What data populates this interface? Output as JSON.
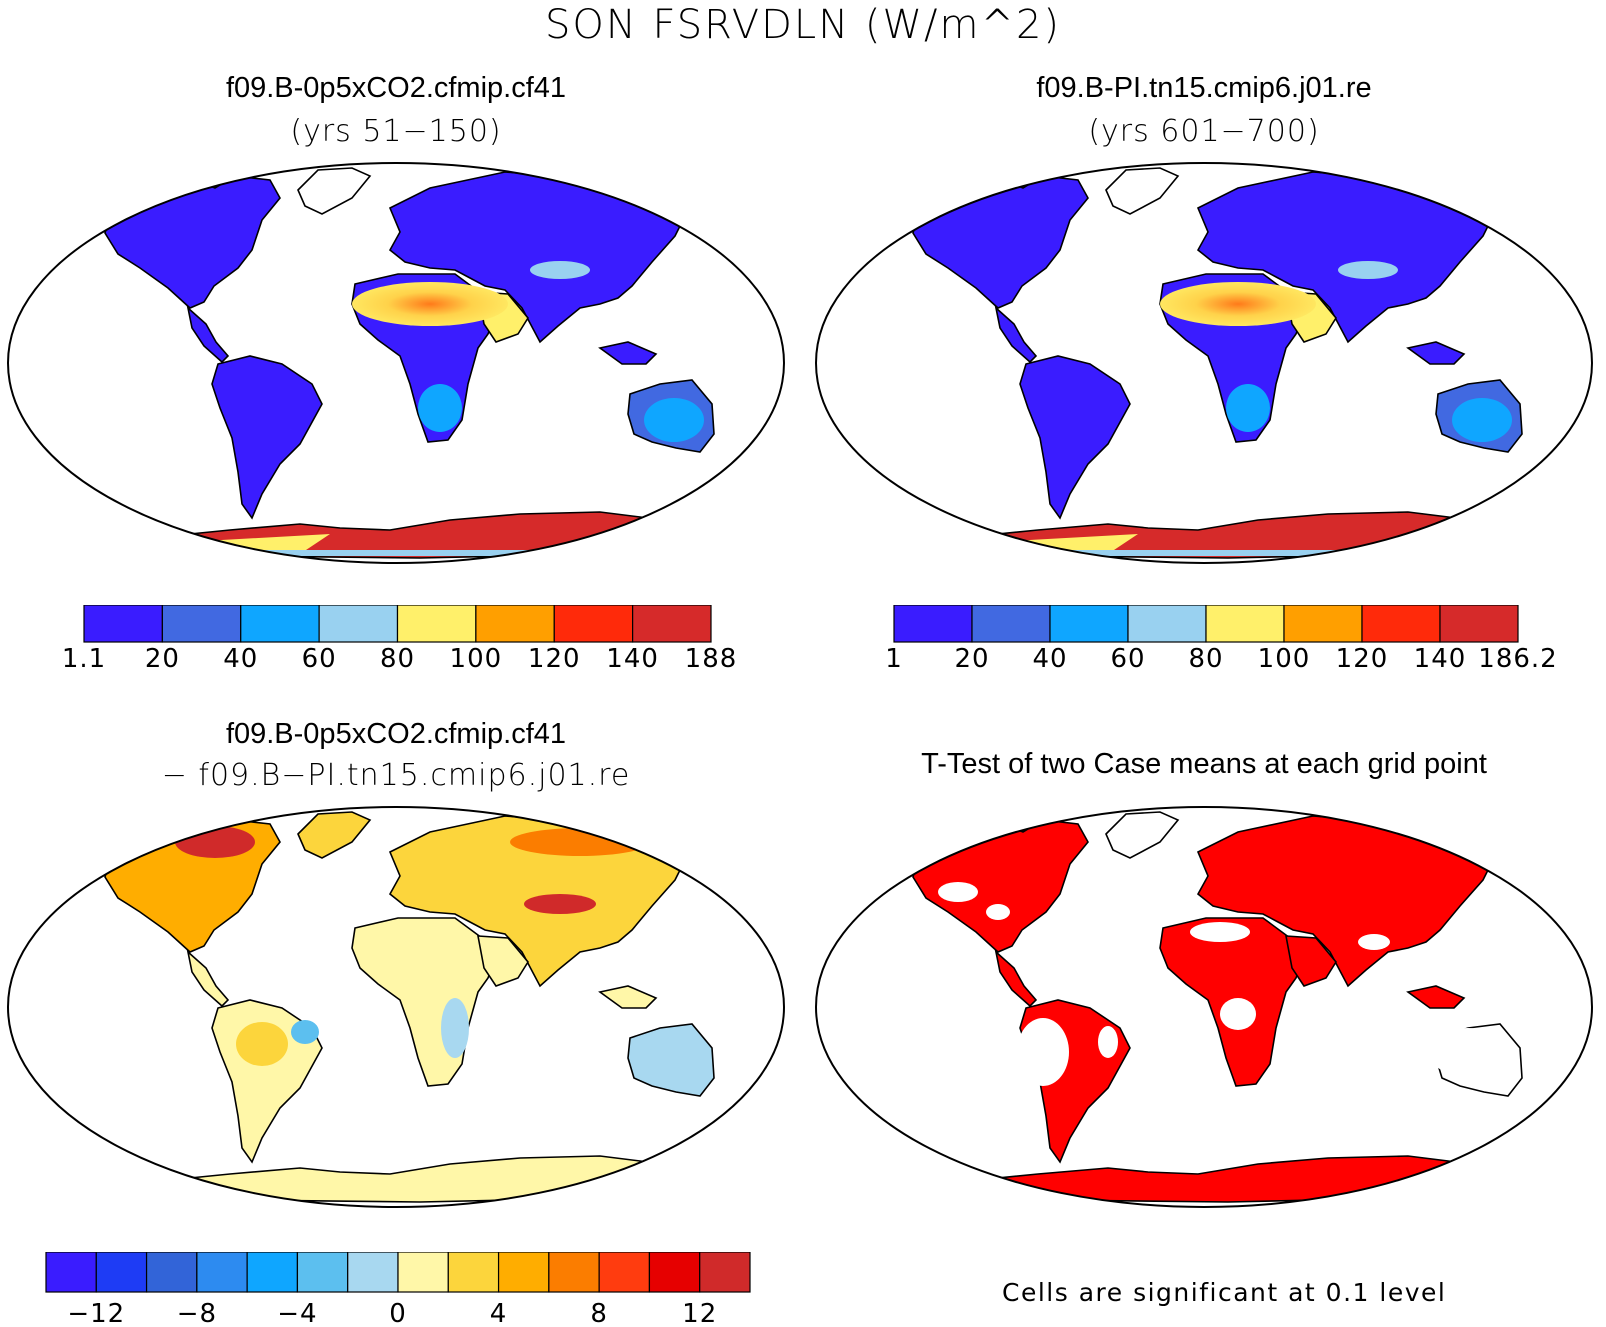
{
  "figure": {
    "title": "SON FSRVDLN (W/m^2)"
  },
  "panels": [
    {
      "id": "case1",
      "title": "f09.B-0p5xCO2.cfmip.cf41",
      "subtitle": "(yrs 51−150)",
      "colorbar": {
        "colors": [
          "#3a1cff",
          "#4169e1",
          "#0fa6ff",
          "#99d1f0",
          "#fff06a",
          "#ff9f00",
          "#ff2a0a",
          "#d62a2a"
        ],
        "labels": [
          "1.1",
          "20",
          "40",
          "60",
          "80",
          "100",
          "120",
          "140",
          "188"
        ]
      }
    },
    {
      "id": "case2",
      "title": "f09.B-PI.tn15.cmip6.j01.re",
      "subtitle": "(yrs 601−700)",
      "colorbar": {
        "colors": [
          "#3a1cff",
          "#4169e1",
          "#0fa6ff",
          "#99d1f0",
          "#fff06a",
          "#ff9f00",
          "#ff2a0a",
          "#d62a2a"
        ],
        "labels": [
          "1",
          "20",
          "40",
          "60",
          "80",
          "100",
          "120",
          "140",
          "186.2"
        ]
      }
    },
    {
      "id": "difference",
      "title": "f09.B-0p5xCO2.cfmip.cf41",
      "subtitle": "− f09.B−PI.tn15.cmip6.j01.re",
      "colorbar": {
        "colors": [
          "#3a1cff",
          "#1e3cf5",
          "#3264d8",
          "#2d8bf0",
          "#0fa6ff",
          "#5cbfef",
          "#a8d8f0",
          "#fff7a8",
          "#fcd53c",
          "#ffad00",
          "#fb7d00",
          "#ff3c0f",
          "#e60000",
          "#d02a2a"
        ],
        "labels": [
          "−12",
          "−8",
          "−4",
          "0",
          "4",
          "8",
          "12"
        ]
      }
    },
    {
      "id": "ttest",
      "title": "T-Test of two Case means at each grid point",
      "note": "Cells are significant at 0.1 level"
    }
  ],
  "colors": {
    "ocean": "#ffffff",
    "coastline": "#000000",
    "significant": "#ff0000"
  }
}
